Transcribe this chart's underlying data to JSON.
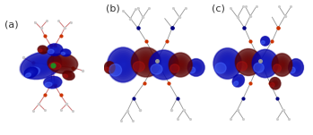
{
  "figure_width": 3.49,
  "figure_height": 1.51,
  "dpi": 100,
  "background_color": "#ffffff",
  "panels": [
    {
      "label": "(a)",
      "xlim": [
        0,
        1
      ],
      "ylim": [
        0,
        1
      ]
    },
    {
      "label": "(b)",
      "xlim": [
        0,
        1
      ],
      "ylim": [
        0,
        1
      ]
    },
    {
      "label": "(c)",
      "xlim": [
        0,
        1
      ],
      "ylim": [
        0,
        1
      ]
    }
  ],
  "orbital_blue_dark": "#0000aa",
  "orbital_blue_mid": "#2244dd",
  "orbital_blue_light": "#4466ff",
  "orbital_red_dark": "#550000",
  "orbital_red_mid": "#7a0000",
  "orbital_red_light": "#aa1111",
  "orbital_alpha": 0.88,
  "atom_gray": "#999999",
  "atom_gray_light": "#cccccc",
  "atom_red": "#cc3300",
  "atom_white": "#dddddd",
  "atom_green": "#228b22",
  "atom_navy": "#000080",
  "atom_blue_dark": "#1a237e",
  "label_fontsize": 8,
  "label_color": "#333333"
}
